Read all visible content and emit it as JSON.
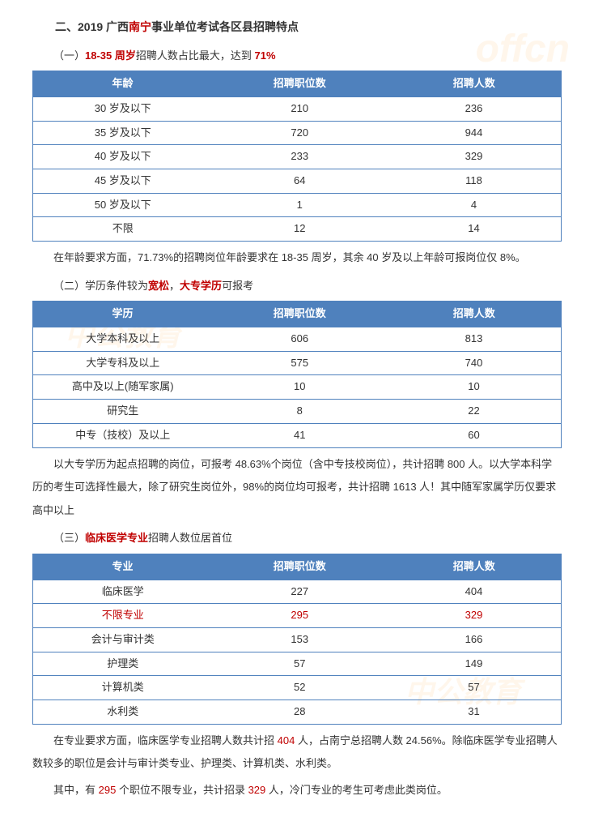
{
  "watermarks": {
    "offcn": "offcn",
    "zh": "中公教育"
  },
  "heading": {
    "prefix": "二、2019 广西",
    "red1": "南宁",
    "suffix": "事业单位考试各区县招聘特点"
  },
  "section1": {
    "title_pre": "（一）",
    "title_red1": "18-35 周岁",
    "title_mid": "招聘人数占比最大，达到 ",
    "title_red2": "71%",
    "headers": [
      "年龄",
      "招聘职位数",
      "招聘人数"
    ],
    "rows": [
      [
        "30 岁及以下",
        "210",
        "236"
      ],
      [
        "35 岁及以下",
        "720",
        "944"
      ],
      [
        "40 岁及以下",
        "233",
        "329"
      ],
      [
        "45 岁及以下",
        "64",
        "118"
      ],
      [
        "50 岁及以下",
        "1",
        "4"
      ],
      [
        "不限",
        "12",
        "14"
      ]
    ],
    "body": "在年龄要求方面，71.73%的招聘岗位年龄要求在 18-35 周岁，其余 40 岁及以上年龄可报岗位仅 8%。"
  },
  "section2": {
    "title_pre": "（二）学历条件较为",
    "title_red1": "宽松",
    "title_mid": "，",
    "title_red2": "大专学历",
    "title_suf": "可报考",
    "headers": [
      "学历",
      "招聘职位数",
      "招聘人数"
    ],
    "rows": [
      [
        "大学本科及以上",
        "606",
        "813"
      ],
      [
        "大学专科及以上",
        "575",
        "740"
      ],
      [
        "高中及以上(随军家属)",
        "10",
        "10"
      ],
      [
        "研究生",
        "8",
        "22"
      ],
      [
        "中专（技校）及以上",
        "41",
        "60"
      ]
    ],
    "body": "以大专学历为起点招聘的岗位，可报考 48.63%个岗位（含中专技校岗位），共计招聘 800 人。以大学本科学历的考生可选择性最大，除了研究生岗位外，98%的岗位均可报考，共计招聘 1613 人！其中随军家属学历仅要求高中以上"
  },
  "section3": {
    "title_pre": "（三）",
    "title_red": "临床医学专业",
    "title_suf": "招聘人数位居首位",
    "headers": [
      "专业",
      "招聘职位数",
      "招聘人数"
    ],
    "rows": [
      {
        "cells": [
          "临床医学",
          "227",
          "404"
        ],
        "red": false
      },
      {
        "cells": [
          "不限专业",
          "295",
          "329"
        ],
        "red": true
      },
      {
        "cells": [
          "会计与审计类",
          "153",
          "166"
        ],
        "red": false
      },
      {
        "cells": [
          "护理类",
          "57",
          "149"
        ],
        "red": false
      },
      {
        "cells": [
          "计算机类",
          "52",
          "57"
        ],
        "red": false
      },
      {
        "cells": [
          "水利类",
          "28",
          "31"
        ],
        "red": false
      }
    ],
    "body1_pre": "在专业要求方面，临床医学专业招聘人数共计招 ",
    "body1_red": "404",
    "body1_suf": " 人，占南宁总招聘人数 24.56%。除临床医学专业招聘人数较多的职位是会计与审计类专业、护理类、计算机类、水利类。",
    "body2_pre": "其中，有 ",
    "body2_red1": "295",
    "body2_mid": " 个职位不限专业，共计招录 ",
    "body2_red2": "329",
    "body2_suf": " 人，冷门专业的考生可考虑此类岗位。"
  }
}
